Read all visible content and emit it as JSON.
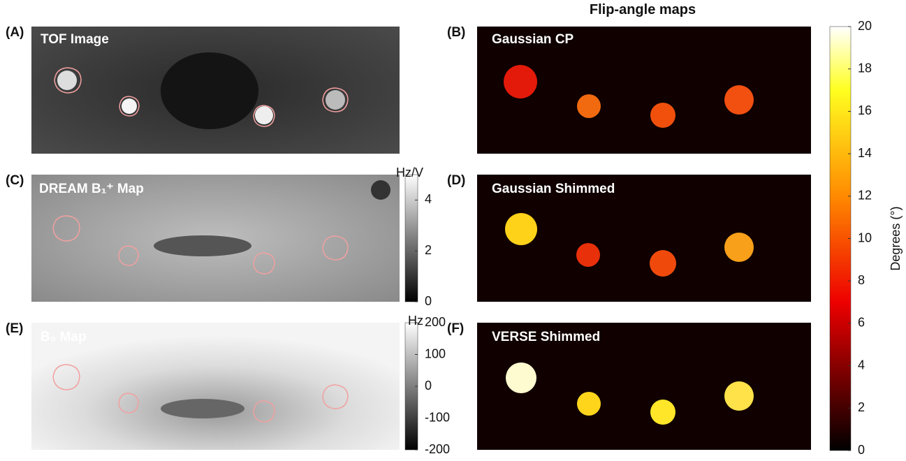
{
  "title": "Flip-angle maps",
  "panels": [
    {
      "letter": "(A)",
      "title": "TOF Image"
    },
    {
      "letter": "(B)",
      "title": "Gaussian CP"
    },
    {
      "letter": "(C)",
      "title": "DREAM B₁⁺ Map"
    },
    {
      "letter": "(D)",
      "title": "Gaussian Shimmed"
    },
    {
      "letter": "(E)",
      "title": "B₀ Map"
    },
    {
      "letter": "(F)",
      "title": "VERSE Shimmed"
    }
  ],
  "colorbars": [
    {
      "label": "Hz/V",
      "lim": [
        0,
        5
      ],
      "ticks": [
        0,
        2,
        4
      ]
    },
    {
      "label": "Hz",
      "lim": [
        -200,
        200
      ],
      "ticks": [
        -200,
        -100,
        0,
        100,
        200
      ]
    },
    {
      "label": "Degrees (°)",
      "lim": [
        0,
        20
      ],
      "ticks": [
        0,
        2,
        4,
        6,
        8,
        10,
        12,
        14,
        16,
        18,
        20
      ]
    }
  ]
}
